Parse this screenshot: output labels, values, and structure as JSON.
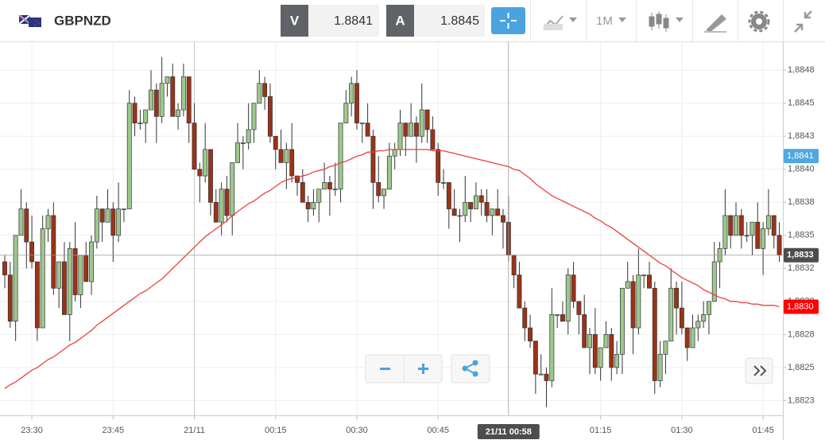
{
  "header": {
    "symbol": "GBPNZD",
    "bid_label": "V",
    "bid": 1.8841,
    "ask_label": "A",
    "ask": 1.8845,
    "timeframe": "1M"
  },
  "chart_data": {
    "type": "candlestick",
    "categories": [
      null,
      null,
      null,
      null,
      null,
      "23:30",
      null,
      null,
      null,
      null,
      null,
      null,
      null,
      null,
      null,
      null,
      null,
      null,
      null,
      null,
      "23:45",
      null,
      null,
      null,
      null,
      null,
      null,
      null,
      null,
      null,
      null,
      null,
      null,
      null,
      null,
      "21/11",
      null,
      null,
      null,
      null,
      null,
      null,
      null,
      null,
      null,
      null,
      null,
      null,
      null,
      null,
      "00:15",
      null,
      null,
      null,
      null,
      null,
      null,
      null,
      null,
      null,
      null,
      null,
      null,
      null,
      null,
      "00:30",
      null,
      null,
      null,
      null,
      null,
      null,
      null,
      null,
      null,
      null,
      null,
      null,
      null,
      null,
      "00:45",
      null,
      null,
      null,
      null,
      null,
      null,
      null,
      null,
      null,
      null,
      null,
      null,
      null,
      null,
      null,
      null,
      null,
      null,
      null,
      null,
      null,
      null,
      null,
      null,
      null,
      null,
      null,
      null,
      null,
      "01:15",
      null,
      null,
      null,
      null,
      null,
      null,
      null,
      null,
      null,
      null,
      null,
      null,
      null,
      null,
      "01:30",
      null,
      null,
      null,
      null,
      null,
      null,
      null,
      null,
      null,
      null,
      null,
      null,
      null,
      null,
      "01:45",
      null,
      null,
      null
    ],
    "open": [
      1.8833,
      1.8832,
      1.88285,
      1.8835,
      1.8837,
      1.88345,
      1.8833,
      1.8828,
      1.88355,
      1.88365,
      1.8831,
      1.8833,
      1.8829,
      1.8834,
      1.88305,
      1.88335,
      1.88315,
      1.88345,
      1.8837,
      1.8836,
      1.8837,
      1.8835,
      1.8837,
      1.8837,
      1.8845,
      1.88435,
      1.88435,
      1.88445,
      1.8846,
      1.8844,
      1.88465,
      1.8847,
      1.8844,
      1.88445,
      1.8847,
      1.88435,
      1.884,
      1.88395,
      1.88415,
      1.88375,
      1.8836,
      1.88385,
      1.88365,
      1.88405,
      1.8842,
      1.8842,
      1.8843,
      1.8845,
      1.88465,
      1.88455,
      1.88425,
      1.88415,
      1.88405,
      1.88415,
      1.88395,
      1.8839,
      1.88375,
      1.8837,
      1.88375,
      1.88385,
      1.8839,
      1.88385,
      1.88385,
      1.88435,
      1.8845,
      1.88465,
      1.88435,
      1.88435,
      1.88425,
      1.8839,
      1.8838,
      1.88385,
      1.8841,
      1.88415,
      1.88435,
      1.88425,
      1.88435,
      1.88425,
      1.88445,
      1.8843,
      1.88415,
      1.8839,
      1.8839,
      1.8837,
      1.88365,
      1.88365,
      1.88375,
      1.8837,
      1.8838,
      1.88375,
      1.88365,
      1.8837,
      1.88365,
      1.8836,
      1.88335,
      1.8832,
      1.88295,
      1.8828,
      1.8827,
      1.88245,
      1.88245,
      1.8824,
      1.8829,
      1.8829,
      1.88285,
      1.8832,
      1.883,
      1.8829,
      1.88265,
      1.88275,
      1.8825,
      1.88265,
      1.88275,
      1.8825,
      1.8826,
      1.8831,
      1.88315,
      1.8828,
      1.8832,
      1.8832,
      1.8831,
      1.8824,
      1.8826,
      1.8827,
      1.8831,
      1.88295,
      1.8828,
      1.88265,
      1.8828,
      1.88285,
      1.8829,
      1.883,
      1.8833,
      1.8834,
      1.88365,
      1.8835,
      1.88365,
      1.8835,
      1.8835,
      1.8836,
      1.8834,
      1.88355,
      1.88365,
      1.8835
    ],
    "high": [
      1.88335,
      1.8833,
      1.8835,
      1.88385,
      1.88375,
      1.88365,
      1.8833,
      1.88365,
      1.8837,
      1.88375,
      1.8833,
      1.88345,
      1.88345,
      1.8836,
      1.88335,
      1.88345,
      1.8835,
      1.8838,
      1.8837,
      1.88385,
      1.88375,
      1.8839,
      1.8837,
      1.8846,
      1.88455,
      1.88445,
      1.88445,
      1.88475,
      1.88465,
      1.88485,
      1.8847,
      1.8848,
      1.8845,
      1.8848,
      1.8847,
      1.8845,
      1.88405,
      1.88435,
      1.88415,
      1.88385,
      1.8839,
      1.88395,
      1.88405,
      1.88435,
      1.88425,
      1.8845,
      1.8845,
      1.88475,
      1.8847,
      1.88465,
      1.88425,
      1.8843,
      1.8842,
      1.88435,
      1.88395,
      1.884,
      1.8838,
      1.88385,
      1.88385,
      1.88405,
      1.88395,
      1.88405,
      1.88435,
      1.8846,
      1.8847,
      1.88475,
      1.88435,
      1.8845,
      1.8843,
      1.8841,
      1.88385,
      1.8842,
      1.8842,
      1.88445,
      1.88435,
      1.8845,
      1.8844,
      1.88465,
      1.88445,
      1.8844,
      1.8842,
      1.884,
      1.8839,
      1.88385,
      1.8837,
      1.88395,
      1.88375,
      1.8839,
      1.88385,
      1.88385,
      1.8837,
      1.88385,
      1.8837,
      1.8838,
      1.88335,
      1.8833,
      1.883,
      1.8829,
      1.8827,
      1.8826,
      1.8825,
      1.8831,
      1.8829,
      1.883,
      1.88325,
      1.8833,
      1.883,
      1.88305,
      1.8828,
      1.88295,
      1.88265,
      1.88285,
      1.8828,
      1.8827,
      1.8831,
      1.8833,
      1.8832,
      1.8834,
      1.8832,
      1.8833,
      1.88315,
      1.8827,
      1.8827,
      1.88325,
      1.88315,
      1.88315,
      1.8828,
      1.8829,
      1.8829,
      1.883,
      1.883,
      1.88345,
      1.88345,
      1.88385,
      1.88365,
      1.88375,
      1.8837,
      1.8836,
      1.8836,
      1.88375,
      1.8836,
      1.88385,
      1.88365,
      1.8836
    ],
    "low": [
      1.8831,
      1.8828,
      1.8827,
      1.8835,
      1.88325,
      1.88325,
      1.8827,
      1.8828,
      1.88345,
      1.88305,
      1.88295,
      1.8829,
      1.8827,
      1.883,
      1.88295,
      1.88315,
      1.88305,
      1.8834,
      1.88345,
      1.8836,
      1.8833,
      1.88345,
      1.8836,
      1.8837,
      1.88425,
      1.8843,
      1.8842,
      1.88445,
      1.8842,
      1.88435,
      1.88455,
      1.8844,
      1.8843,
      1.8844,
      1.8842,
      1.884,
      1.88375,
      1.8839,
      1.88365,
      1.8836,
      1.8835,
      1.8836,
      1.8835,
      1.88405,
      1.884,
      1.88415,
      1.8842,
      1.8845,
      1.88445,
      1.8842,
      1.884,
      1.88405,
      1.88385,
      1.8839,
      1.8838,
      1.88375,
      1.8836,
      1.88365,
      1.8836,
      1.88385,
      1.88365,
      1.8838,
      1.88375,
      1.88435,
      1.8844,
      1.8843,
      1.8842,
      1.88425,
      1.8837,
      1.88375,
      1.8837,
      1.88385,
      1.884,
      1.8841,
      1.8841,
      1.88425,
      1.88405,
      1.8842,
      1.8842,
      1.88415,
      1.8838,
      1.88385,
      1.88355,
      1.88365,
      1.88345,
      1.8836,
      1.8836,
      1.8837,
      1.88365,
      1.8836,
      1.8835,
      1.88365,
      1.8834,
      1.8833,
      1.8831,
      1.88295,
      1.8827,
      1.88265,
      1.8823,
      1.88245,
      1.8822,
      1.88235,
      1.8828,
      1.88285,
      1.88275,
      1.88295,
      1.88275,
      1.88265,
      1.88245,
      1.88245,
      1.8824,
      1.88265,
      1.8824,
      1.88245,
      1.88245,
      1.8831,
      1.8826,
      1.88275,
      1.8831,
      1.8831,
      1.8823,
      1.88235,
      1.88245,
      1.8827,
      1.88275,
      1.88275,
      1.88255,
      1.88265,
      1.8827,
      1.8828,
      1.88275,
      1.883,
      1.8831,
      1.88335,
      1.8834,
      1.8835,
      1.8834,
      1.88345,
      1.88335,
      1.8834,
      1.8832,
      1.8835,
      1.8834,
      1.8833
    ],
    "close": [
      1.8832,
      1.88285,
      1.8835,
      1.8837,
      1.88345,
      1.8833,
      1.8828,
      1.88355,
      1.88365,
      1.8831,
      1.8833,
      1.8829,
      1.8834,
      1.88305,
      1.88335,
      1.88315,
      1.88345,
      1.8837,
      1.8836,
      1.8837,
      1.8835,
      1.8837,
      1.8837,
      1.8845,
      1.88435,
      1.88435,
      1.88445,
      1.8846,
      1.8844,
      1.88465,
      1.8847,
      1.8844,
      1.88445,
      1.8847,
      1.88435,
      1.884,
      1.88395,
      1.88415,
      1.88375,
      1.8836,
      1.88385,
      1.88365,
      1.88405,
      1.8842,
      1.8842,
      1.8843,
      1.8845,
      1.88465,
      1.88455,
      1.88425,
      1.88415,
      1.88405,
      1.88415,
      1.88395,
      1.8839,
      1.88375,
      1.8837,
      1.88375,
      1.88385,
      1.8839,
      1.88385,
      1.88385,
      1.88435,
      1.8845,
      1.88465,
      1.88435,
      1.88435,
      1.88425,
      1.8839,
      1.8838,
      1.88385,
      1.8841,
      1.88415,
      1.88435,
      1.88425,
      1.88435,
      1.88425,
      1.88445,
      1.8843,
      1.88415,
      1.8839,
      1.8839,
      1.8837,
      1.88365,
      1.88365,
      1.88375,
      1.8837,
      1.8838,
      1.88375,
      1.88365,
      1.8837,
      1.88365,
      1.8836,
      1.88335,
      1.8832,
      1.88295,
      1.8828,
      1.8827,
      1.88245,
      1.88245,
      1.8824,
      1.8829,
      1.8829,
      1.88285,
      1.8832,
      1.883,
      1.8829,
      1.88265,
      1.88275,
      1.8825,
      1.88265,
      1.88275,
      1.8825,
      1.8826,
      1.8831,
      1.88315,
      1.8828,
      1.8832,
      1.8832,
      1.8831,
      1.8824,
      1.8826,
      1.8827,
      1.8831,
      1.88295,
      1.8828,
      1.88265,
      1.8828,
      1.88285,
      1.8829,
      1.883,
      1.8833,
      1.8834,
      1.88365,
      1.8835,
      1.88365,
      1.8835,
      1.8835,
      1.8836,
      1.8834,
      1.88355,
      1.88365,
      1.8835,
      1.88335
    ],
    "up_color": "#9dc88d",
    "down_color": "#9b3318",
    "ma": {
      "color": "#e8413a",
      "values": [
        1.88234,
        1.88237,
        1.88239,
        1.88242,
        1.88245,
        1.88248,
        1.8825,
        1.88253,
        1.88256,
        1.88258,
        1.88261,
        1.88264,
        1.88267,
        1.88269,
        1.88272,
        1.88275,
        1.88278,
        1.88282,
        1.88285,
        1.88288,
        1.88291,
        1.88294,
        1.88297,
        1.883,
        1.88303,
        1.88306,
        1.88308,
        1.88311,
        1.88314,
        1.88317,
        1.88321,
        1.88325,
        1.88329,
        1.88333,
        1.88337,
        1.88341,
        1.88345,
        1.88349,
        1.88352,
        1.88355,
        1.88358,
        1.88361,
        1.88365,
        1.88368,
        1.88371,
        1.88374,
        1.88376,
        1.88379,
        1.88382,
        1.88384,
        1.88387,
        1.8839,
        1.88392,
        1.88393,
        1.88394,
        1.88395,
        1.88396,
        1.88398,
        1.88399,
        1.884,
        1.88402,
        1.88403,
        1.88405,
        1.88406,
        1.88408,
        1.8841,
        1.88411,
        1.88413,
        1.88413,
        1.88414,
        1.88414,
        1.88415,
        1.88415,
        1.88415,
        1.88415,
        1.88415,
        1.88415,
        1.88415,
        1.88415,
        1.88414,
        1.88414,
        1.88414,
        1.88413,
        1.88412,
        1.88411,
        1.8841,
        1.88409,
        1.88408,
        1.88407,
        1.88406,
        1.88405,
        1.88404,
        1.88403,
        1.88402,
        1.884,
        1.88399,
        1.88396,
        1.88393,
        1.88389,
        1.88386,
        1.88383,
        1.8838,
        1.88378,
        1.88376,
        1.88374,
        1.88372,
        1.8837,
        1.88368,
        1.88366,
        1.88363,
        1.88361,
        1.88358,
        1.88356,
        1.88353,
        1.8835,
        1.88347,
        1.88344,
        1.88341,
        1.88338,
        1.88335,
        1.88332,
        1.88329,
        1.88327,
        1.88324,
        1.88321,
        1.88318,
        1.88316,
        1.88314,
        1.88312,
        1.88309,
        1.88307,
        1.88305,
        1.88303,
        1.88302,
        1.883,
        1.883,
        1.88299,
        1.88299,
        1.88298,
        1.88298,
        1.88297,
        1.88297,
        1.88297,
        1.88296
      ]
    },
    "ylim": [
      1.88215,
      1.88495
    ],
    "yticks": [
      {
        "value": 1.88475,
        "label": "1,8848"
      },
      {
        "value": 1.8845,
        "label": "1,8845"
      },
      {
        "value": 1.88425,
        "label": "1,8843"
      },
      {
        "value": 1.884,
        "label": "1,8840"
      },
      {
        "value": 1.88375,
        "label": "1,8838"
      },
      {
        "value": 1.8835,
        "label": "1,8835"
      },
      {
        "value": 1.88325,
        "label": "1,8832"
      },
      {
        "value": 1.883,
        "label": "1,8830"
      },
      {
        "value": 1.88275,
        "label": "1,8828"
      },
      {
        "value": 1.8825,
        "label": "1,8825"
      },
      {
        "value": 1.88225,
        "label": "1,8823"
      }
    ],
    "grid": true,
    "crosshair": {
      "x_label": "21/11 00:58",
      "y": 1.88335,
      "y_label": "1,8833"
    },
    "markers": [
      {
        "value": 1.8841,
        "label": "1,8841",
        "color": "#4fa8de"
      },
      {
        "value": 1.88296,
        "label": "1,8830",
        "color": "#ff0000"
      }
    ]
  }
}
